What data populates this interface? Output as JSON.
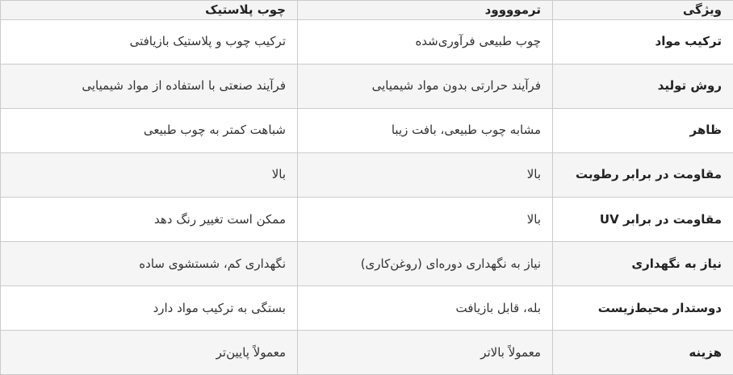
{
  "table": {
    "direction": "rtl",
    "colors": {
      "header_bg": "#f4f4f5",
      "stripe_bg": "#f5f5f6",
      "border": "#cbcbcd",
      "text": "#333333",
      "bold_text": "#222222"
    },
    "columns": [
      {
        "key": "feature",
        "label": "ویژگی"
      },
      {
        "key": "thermowood",
        "label": "ترموووود"
      },
      {
        "key": "plastic_wood",
        "label": "چوب پلاستیک"
      }
    ],
    "rows": [
      {
        "feature": "ترکیب مواد",
        "thermowood": "چوب طبیعی فرآوری‌شده",
        "plastic_wood": "ترکیب چوب و پلاستیک بازیافتی"
      },
      {
        "feature": "روش تولید",
        "thermowood": "فرآیند حرارتی بدون مواد شیمیایی",
        "plastic_wood": "فرآیند صنعتی با استفاده از مواد شیمیایی"
      },
      {
        "feature": "ظاهر",
        "thermowood": "مشابه چوب طبیعی، بافت زیبا",
        "plastic_wood": "شباهت کمتر به چوب طبیعی"
      },
      {
        "feature": "مقاومت در برابر رطوبت",
        "thermowood": "بالا",
        "plastic_wood": "بالا"
      },
      {
        "feature": "مقاومت در برابر UV",
        "thermowood": "بالا",
        "plastic_wood": "ممکن است تغییر رنگ دهد"
      },
      {
        "feature": "نیاز به نگهداری",
        "thermowood": "نیاز به نگهداری دوره‌ای (روغن‌کاری)",
        "plastic_wood": "نگهداری کم، شستشوی ساده"
      },
      {
        "feature": "دوستدار محیط‌زیست",
        "thermowood": "بله، قابل بازیافت",
        "plastic_wood": "بستگی به ترکیب مواد دارد"
      },
      {
        "feature": "هزینه",
        "thermowood": "معمولاً بالاتر",
        "plastic_wood": "معمولاً پایین‌تر"
      }
    ]
  }
}
